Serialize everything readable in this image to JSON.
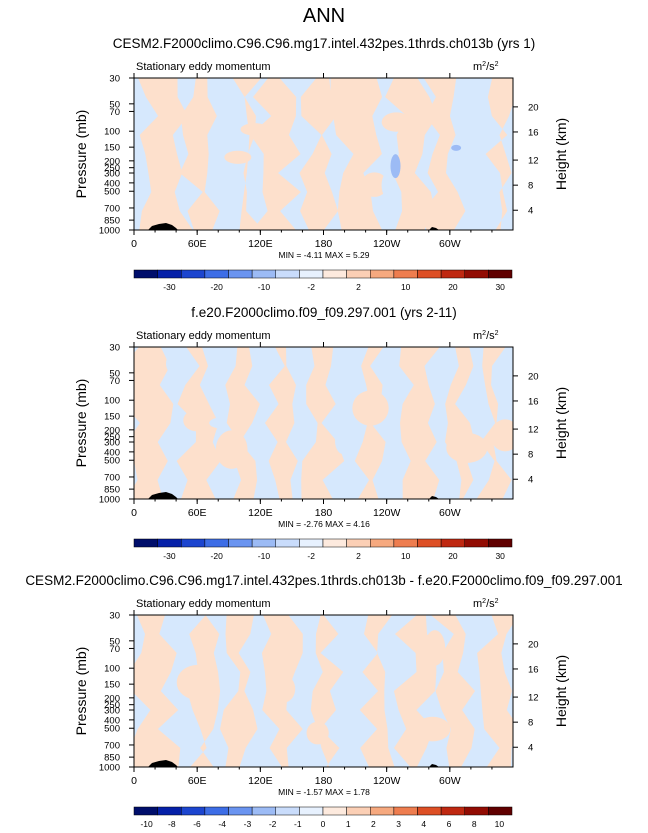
{
  "figure": {
    "title": "ANN"
  },
  "chart_data": [
    {
      "type": "heatmap",
      "title": "CESM2.F2000climo.C96.C96.mg17.intel.432pes.1thrds.ch013b (yrs 1)",
      "field_label": "Stationary eddy momentum",
      "units": "m",
      "units_sup": "2",
      "units_sep": "/s",
      "units_sup2": "2",
      "ylabel": "Pressure (mb)",
      "y2label": "Height (km)",
      "x_ticks": [
        "0",
        "60E",
        "120E",
        "180",
        "120W",
        "60W"
      ],
      "y_ticks": [
        "30",
        "50",
        "70",
        "100",
        "150",
        "200",
        "250",
        "300",
        "400",
        "500",
        "700",
        "850",
        "1000"
      ],
      "y2_ticks": [
        "20",
        "16",
        "12",
        "8",
        "4"
      ],
      "min_label": "MIN =",
      "min": "-4.11",
      "max_label": "MAX =",
      "max": "5.29",
      "colorbar_labels": [
        "-30",
        "-20",
        "-10",
        "-2",
        "2",
        "10",
        "20",
        "30"
      ],
      "colors": {
        "negative": "#d6e8fd",
        "positive": "#fde0cc",
        "strong_negative": "#9cbbf5",
        "terrain": "#000000"
      }
    },
    {
      "type": "heatmap",
      "title": "f.e20.F2000climo.f09_f09.297.001 (yrs 2-11)",
      "field_label": "Stationary eddy momentum",
      "units": "m",
      "units_sup": "2",
      "units_sep": "/s",
      "units_sup2": "2",
      "ylabel": "Pressure (mb)",
      "y2label": "Height (km)",
      "x_ticks": [
        "0",
        "60E",
        "120E",
        "180",
        "120W",
        "60W"
      ],
      "y_ticks": [
        "30",
        "50",
        "70",
        "100",
        "150",
        "200",
        "250",
        "300",
        "400",
        "500",
        "700",
        "850",
        "1000"
      ],
      "y2_ticks": [
        "20",
        "16",
        "12",
        "8",
        "4"
      ],
      "min_label": "MIN =",
      "min": "-2.76",
      "max_label": "MAX =",
      "max": "4.16",
      "colorbar_labels": [
        "-30",
        "-20",
        "-10",
        "-2",
        "2",
        "10",
        "20",
        "30"
      ],
      "colors": {
        "negative": "#d6e8fd",
        "positive": "#fde0cc",
        "strong_negative": "#9cbbf5",
        "terrain": "#000000"
      }
    },
    {
      "type": "heatmap",
      "title": "CESM2.F2000climo.C96.C96.mg17.intel.432pes.1thrds.ch013b - f.e20.F2000climo.f09_f09.297.001",
      "field_label": "Stationary eddy momentum",
      "units": "m",
      "units_sup": "2",
      "units_sep": "/s",
      "units_sup2": "2",
      "ylabel": "Pressure (mb)",
      "y2label": "Height (km)",
      "x_ticks": [
        "0",
        "60E",
        "120E",
        "180",
        "120W",
        "60W"
      ],
      "y_ticks": [
        "30",
        "50",
        "70",
        "100",
        "150",
        "200",
        "250",
        "300",
        "400",
        "500",
        "700",
        "850",
        "1000"
      ],
      "y2_ticks": [
        "20",
        "16",
        "12",
        "8",
        "4"
      ],
      "min_label": "MIN =",
      "min": "-1.57",
      "max_label": "MAX =",
      "max": "1.78",
      "colorbar_labels": [
        "-10",
        "-8",
        "-6",
        "-4",
        "-3",
        "-2",
        "-1",
        "0",
        "1",
        "2",
        "3",
        "4",
        "6",
        "8",
        "10"
      ],
      "colors": {
        "negative": "#d6e8fd",
        "positive": "#fde0cc",
        "strong_negative": "#9cbbf5",
        "terrain": "#000000"
      }
    }
  ],
  "colormap": [
    "#000e6b",
    "#0520a8",
    "#1c45cf",
    "#3d6de6",
    "#6a94f0",
    "#9cbbf5",
    "#c9dcfb",
    "#e7f1fe",
    "#fdeade",
    "#fbcfb5",
    "#f6a97f",
    "#ee7d4f",
    "#dd4f25",
    "#bf2811",
    "#920c03",
    "#600000"
  ]
}
